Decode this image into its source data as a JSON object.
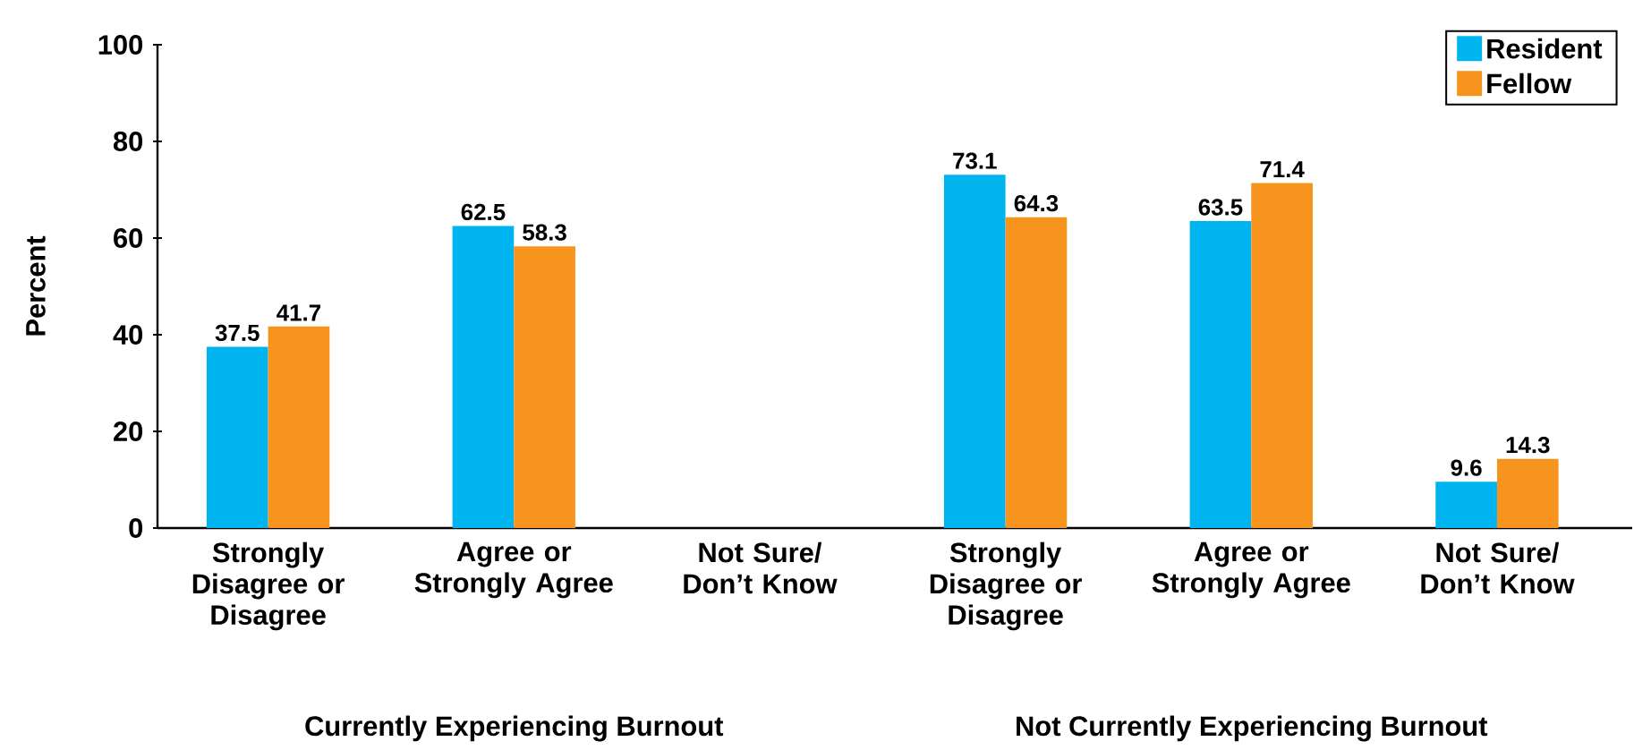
{
  "chart_data": {
    "type": "bar",
    "ylabel": "Percent",
    "categories": [
      "Strongly Disagree or Disagree",
      "Agree or Strongly Agree",
      "Not Sure/ Don’t Know",
      "Strongly Disagree or Disagree",
      "Agree or Strongly Agree",
      "Not Sure/ Don’t Know"
    ],
    "series": [
      {
        "name": "Resident",
        "color": "#00b5ef",
        "values": [
          37.5,
          62.5,
          null,
          73.1,
          63.5,
          9.6
        ]
      },
      {
        "name": "Fellow",
        "color": "#f7941d",
        "values": [
          41.7,
          58.3,
          null,
          64.3,
          71.4,
          14.3
        ]
      }
    ],
    "ylim": [
      0,
      100
    ],
    "yticks": [
      0,
      20,
      40,
      60,
      80,
      100
    ],
    "grid": false,
    "legend": "top right",
    "data_labels": true,
    "annotations": [
      "Currently Experiencing Burnout",
      "Not Currently Experiencing Burnout"
    ]
  }
}
